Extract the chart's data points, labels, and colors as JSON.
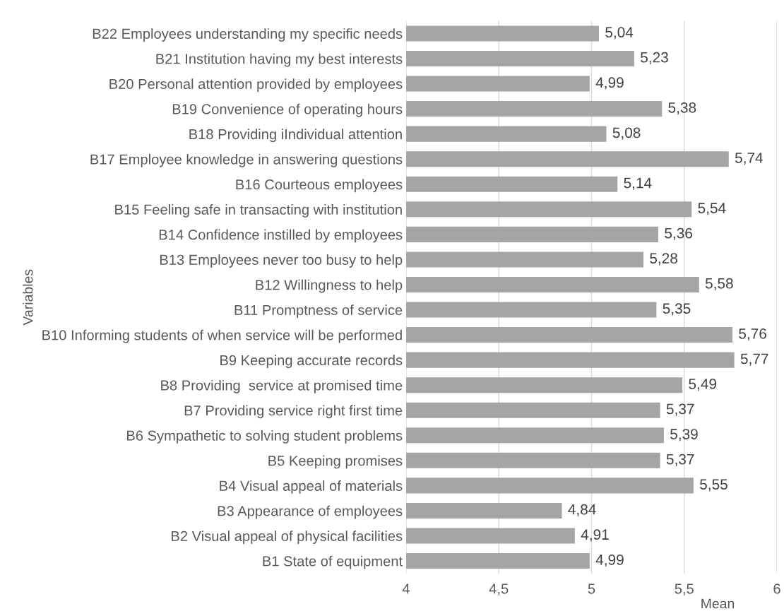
{
  "chart_data": {
    "type": "bar",
    "orientation": "horizontal",
    "xlabel": "Mean",
    "ylabel": "Variables",
    "categories": [
      "B22 Employees understanding my specific needs",
      "B21 Institution having my best interests",
      "B20 Personal attention provided by employees",
      "B19 Convenience of operating hours",
      "B18 Providing iIndividual attention",
      "B17 Employee knowledge in answering questions",
      "B16 Courteous employees",
      "B15 Feeling safe in transacting with institution",
      "B14 Confidence instilled by employees",
      "B13 Employees never too busy to help",
      "B12 Willingness to help",
      "B11 Promptness of service",
      "B10 Informing students of when service will be performed",
      "B9 Keeping accurate records",
      "B8 Providing  service at promised time",
      "B7 Providing service right first time",
      "B6 Sympathetic to solving student problems",
      "B5 Keeping promises",
      "B4 Visual appeal of materials",
      "B3 Appearance of employees",
      "B2 Visual appeal of physical facilities",
      "B1 State of equipment"
    ],
    "values": [
      5.04,
      5.23,
      4.99,
      5.38,
      5.08,
      5.74,
      5.14,
      5.54,
      5.36,
      5.28,
      5.58,
      5.35,
      5.76,
      5.77,
      5.49,
      5.37,
      5.39,
      5.37,
      5.55,
      4.84,
      4.91,
      4.99
    ],
    "value_labels": [
      "5,04",
      "5,23",
      "4,99",
      "5,38",
      "5,08",
      "5,74",
      "5,14",
      "5,54",
      "5,36",
      "5,28",
      "5,58",
      "5,35",
      "5,76",
      "5,77",
      "5,49",
      "5,37",
      "5,39",
      "5,37",
      "5,55",
      "4,84",
      "4,91",
      "4,99"
    ],
    "color": "#a5a5a5",
    "xlim": [
      4,
      6
    ],
    "xticks": [
      4,
      {
        "value": 4.5,
        "label": "4,5"
      },
      5,
      {
        "value": 5.5,
        "label": "5,5"
      },
      6
    ],
    "grid": "x"
  }
}
